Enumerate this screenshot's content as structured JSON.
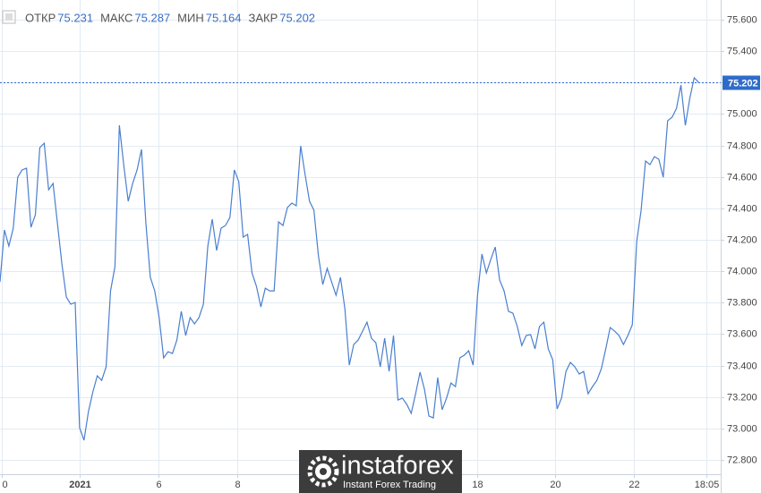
{
  "chart_data": {
    "type": "line",
    "color": "#4a7fd0",
    "ohlc": [
      {
        "label": "ОТКР",
        "value": 75.231
      },
      {
        "label": "МАКС",
        "value": 75.287
      },
      {
        "label": "МИН",
        "value": 75.164
      },
      {
        "label": "ЗАКР",
        "value": 75.202
      }
    ],
    "last_price": 75.202,
    "values": [
      73.932,
      74.262,
      74.16,
      74.274,
      74.598,
      74.644,
      74.655,
      74.279,
      74.359,
      74.786,
      74.814,
      74.518,
      74.558,
      74.302,
      74.046,
      73.836,
      73.79,
      73.801,
      73.005,
      72.925,
      73.107,
      73.232,
      73.335,
      73.306,
      73.392,
      73.875,
      74.029,
      74.928,
      74.672,
      74.445,
      74.558,
      74.644,
      74.775,
      74.302,
      73.961,
      73.875,
      73.705,
      73.449,
      73.488,
      73.477,
      73.562,
      73.745,
      73.591,
      73.705,
      73.665,
      73.705,
      73.79,
      74.16,
      74.331,
      74.132,
      74.274,
      74.291,
      74.342,
      74.644,
      74.57,
      74.217,
      74.234,
      73.989,
      73.904,
      73.773,
      73.892,
      73.875,
      73.875,
      74.314,
      74.291,
      74.405,
      74.433,
      74.416,
      74.797,
      74.615,
      74.445,
      74.388,
      74.103,
      73.915,
      74.018,
      73.932,
      73.847,
      73.961,
      73.762,
      73.403,
      73.534,
      73.562,
      73.619,
      73.676,
      73.574,
      73.545,
      73.392,
      73.574,
      73.363,
      73.591,
      73.181,
      73.193,
      73.153,
      73.096,
      73.221,
      73.358,
      73.249,
      73.079,
      73.067,
      73.323,
      73.119,
      73.193,
      73.289,
      73.266,
      73.449,
      73.466,
      73.494,
      73.403,
      73.847,
      74.109,
      73.989,
      74.075,
      74.154,
      73.944,
      73.875,
      73.745,
      73.733,
      73.648,
      73.528,
      73.591,
      73.597,
      73.506,
      73.648,
      73.676,
      73.506,
      73.437,
      73.124,
      73.193,
      73.363,
      73.42,
      73.392,
      73.346,
      73.363,
      73.221,
      73.266,
      73.306,
      73.38,
      73.506,
      73.642,
      73.619,
      73.591,
      73.534,
      73.591,
      73.659,
      74.188,
      74.388,
      74.701,
      74.678,
      74.729,
      74.712,
      74.598,
      74.957,
      74.979,
      75.036,
      75.184,
      74.928,
      75.099,
      75.23,
      75.202
    ],
    "xlim": [
      0,
      163
    ],
    "xticks": [
      {
        "value": 0.4,
        "label": "0"
      },
      {
        "value": 18,
        "label": "2021"
      },
      {
        "value": 35.8,
        "label": "6"
      },
      {
        "value": 53.6,
        "label": "8"
      },
      {
        "value": 107.9,
        "label": "18"
      },
      {
        "value": 125.5,
        "label": "20"
      },
      {
        "value": 143.3,
        "label": "22"
      },
      {
        "value": 159.7,
        "label": "18:05"
      }
    ],
    "ylim": [
      72.709,
      75.725
    ],
    "yticks": [
      {
        "value": 72.8,
        "label": "72.800"
      },
      {
        "value": 73.0,
        "label": "73.000"
      },
      {
        "value": 73.2,
        "label": "73.200"
      },
      {
        "value": 73.4,
        "label": "73.400"
      },
      {
        "value": 73.6,
        "label": "73.600"
      },
      {
        "value": 73.8,
        "label": "73.800"
      },
      {
        "value": 74.0,
        "label": "74.000"
      },
      {
        "value": 74.2,
        "label": "74.200"
      },
      {
        "value": 74.4,
        "label": "74.400"
      },
      {
        "value": 74.6,
        "label": "74.600"
      },
      {
        "value": 74.8,
        "label": "74.800"
      },
      {
        "value": 75.0,
        "label": "75.000"
      },
      {
        "value": 75.2,
        "label": "75.200"
      },
      {
        "value": 75.4,
        "label": "75.400"
      },
      {
        "value": 75.6,
        "label": "75.600"
      }
    ],
    "grid": true
  },
  "watermark": {
    "name": "instaforex",
    "tagline": "Instant Forex Trading"
  }
}
